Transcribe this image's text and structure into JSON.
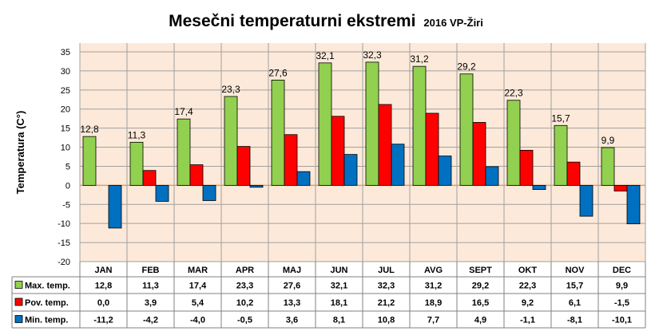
{
  "chart_data": {
    "type": "bar",
    "title": "Mesečni temperaturni ekstremi",
    "subtitle": "2016 VP-Žiri",
    "ylabel": "Temperatura (C°)",
    "xlabel": "",
    "ylim": [
      -20,
      35
    ],
    "yticks": [
      35,
      30,
      25,
      20,
      15,
      10,
      5,
      0,
      -5,
      -10,
      -15,
      -20
    ],
    "grid": true,
    "legend": "data-table",
    "categories": [
      "JAN",
      "FEB",
      "MAR",
      "APR",
      "MAJ",
      "JUN",
      "JUL",
      "AVG",
      "SEPT",
      "OKT",
      "NOV",
      "DEC"
    ],
    "series": [
      {
        "name": "Max. temp.",
        "color": "#92d050",
        "values": [
          12.8,
          11.3,
          17.4,
          23.3,
          27.6,
          32.1,
          32.3,
          31.2,
          29.2,
          22.3,
          15.7,
          9.9
        ],
        "labels": [
          "12,8",
          "11,3",
          "17,4",
          "23,3",
          "27,6",
          "32,1",
          "32,3",
          "31,2",
          "29,2",
          "22,3",
          "15,7",
          "9,9"
        ]
      },
      {
        "name": "Pov. temp.",
        "color": "#ff0000",
        "values": [
          0.0,
          3.9,
          5.4,
          10.2,
          13.3,
          18.1,
          21.2,
          18.9,
          16.5,
          9.2,
          6.1,
          -1.5
        ],
        "labels": [
          "0,0",
          "3,9",
          "5,4",
          "10,2",
          "13,3",
          "18,1",
          "21,2",
          "18,9",
          "16,5",
          "9,2",
          "6,1",
          "-1,5"
        ]
      },
      {
        "name": "Min. temp.",
        "color": "#0070c0",
        "values": [
          -11.2,
          -4.2,
          -4.0,
          -0.5,
          3.6,
          8.1,
          10.8,
          7.7,
          4.9,
          -1.1,
          -8.1,
          -10.1
        ],
        "labels": [
          "-11,2",
          "-4,2",
          "-4,0",
          "-0,5",
          "3,6",
          "8,1",
          "10,8",
          "7,7",
          "4,9",
          "-1,1",
          "-8,1",
          "-10,1"
        ]
      }
    ],
    "data_labels_series": "Max. temp.",
    "plot_background": "#fde9d9"
  }
}
